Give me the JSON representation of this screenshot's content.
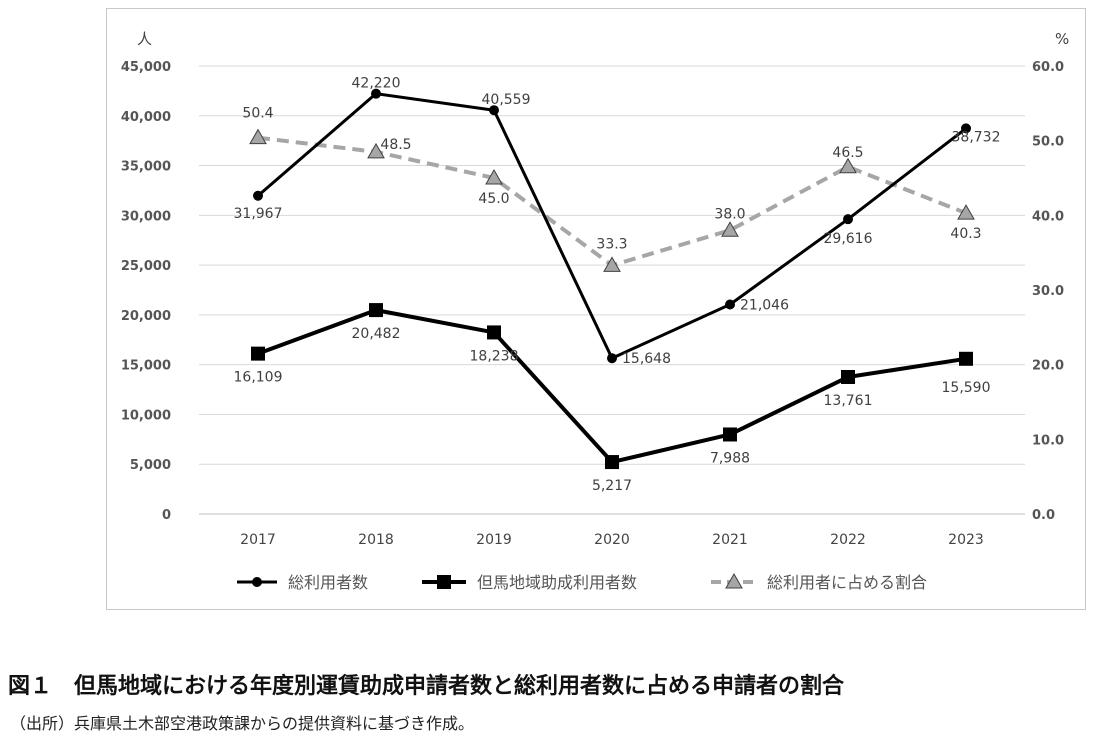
{
  "caption": "図１　但馬地域における年度別運賃助成申請者数と総利用者数に占める申請者の割合",
  "source": "（出所）兵庫県土木部空港政策課からの提供資料に基づき作成。",
  "chart_data": {
    "type": "line",
    "title": "",
    "x": [
      "2017",
      "2018",
      "2019",
      "2020",
      "2021",
      "2022",
      "2023"
    ],
    "y_left": {
      "unit": "人",
      "ylim": [
        0,
        45000
      ],
      "ticks": [
        "0",
        "5,000",
        "10,000",
        "15,000",
        "20,000",
        "25,000",
        "30,000",
        "35,000",
        "40,000",
        "45,000"
      ]
    },
    "y_right": {
      "unit": "%",
      "ylim": [
        0,
        60
      ],
      "ticks": [
        "0.0",
        "10.0",
        "20.0",
        "30.0",
        "40.0",
        "50.0",
        "60.0"
      ]
    },
    "grid": true,
    "legend_position": "bottom",
    "series": [
      {
        "name": "総利用者数",
        "axis": "left",
        "marker": "circle",
        "style": "solid",
        "color": "#000000",
        "values": [
          31967,
          42220,
          40559,
          15648,
          21046,
          29616,
          38732
        ],
        "labels": [
          "31,967",
          "42,220",
          "40,559",
          "15,648",
          "21,046",
          "29,616",
          "38,732"
        ]
      },
      {
        "name": "但馬地域助成利用者数",
        "axis": "left",
        "marker": "square",
        "style": "solid",
        "color": "#000000",
        "values": [
          16109,
          20482,
          18238,
          5217,
          7988,
          13761,
          15590
        ],
        "labels": [
          "16,109",
          "20,482",
          "18,238",
          "5,217",
          "7,988",
          "13,761",
          "15,590"
        ]
      },
      {
        "name": "総利用者に占める割合",
        "axis": "right",
        "marker": "triangle",
        "style": "dashed",
        "color": "#a6a6a6",
        "values": [
          50.4,
          48.5,
          45.0,
          33.3,
          38.0,
          46.5,
          40.3
        ],
        "labels": [
          "50.4",
          "48.5",
          "45.0",
          "33.3",
          "38.0",
          "46.5",
          "40.3"
        ]
      }
    ]
  }
}
